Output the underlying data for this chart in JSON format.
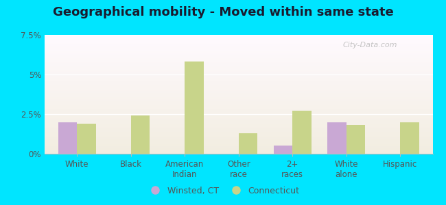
{
  "title": "Geographical mobility - Moved within same state",
  "categories": [
    "White",
    "Black",
    "American\nIndian",
    "Other\nrace",
    "2+\nraces",
    "White\nalone",
    "Hispanic"
  ],
  "winsted_values": [
    2.0,
    0.0,
    0.0,
    0.0,
    0.5,
    2.0,
    0.0
  ],
  "connecticut_values": [
    1.9,
    2.4,
    5.8,
    1.3,
    2.7,
    1.8,
    2.0
  ],
  "winsted_color": "#c9a8d4",
  "connecticut_color": "#c8d48a",
  "ylim": [
    0,
    7.5
  ],
  "yticks": [
    0,
    2.5,
    5.0,
    7.5
  ],
  "ytick_labels": [
    "0%",
    "2.5%",
    "5%",
    "7.5%"
  ],
  "outer_background": "#00e5ff",
  "title_fontsize": 13,
  "bar_width": 0.35,
  "legend_winsted": "Winsted, CT",
  "legend_connecticut": "Connecticut",
  "watermark": "City-Data.com"
}
